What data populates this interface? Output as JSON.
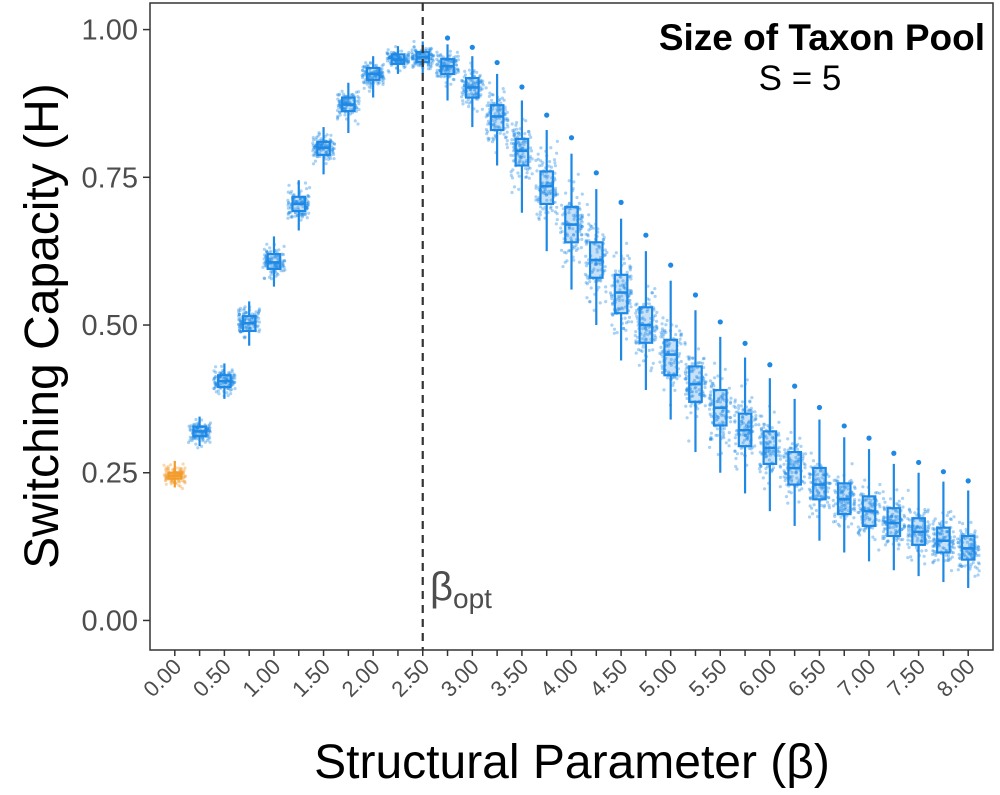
{
  "chart_data": {
    "type": "box",
    "title": "Size of Taxon Pool",
    "subtitle": "S = 5",
    "xlabel": "Structural Parameter (β)",
    "ylabel": "Switching Capacity (H)",
    "ylim": [
      -0.05,
      1.045
    ],
    "xlim": [
      -0.25,
      8.25
    ],
    "y_ticks": [
      0.0,
      0.25,
      0.5,
      0.75,
      1.0
    ],
    "y_tick_labels": [
      "0.00",
      "0.25",
      "0.50",
      "0.75",
      "1.00"
    ],
    "x_ticks": [
      0.0,
      0.5,
      1.0,
      1.5,
      2.0,
      2.5,
      3.0,
      3.5,
      4.0,
      4.5,
      5.0,
      5.5,
      6.0,
      6.5,
      7.0,
      7.5,
      8.0
    ],
    "x_tick_labels": [
      "0.00",
      "0.50",
      "1.00",
      "1.50",
      "2.00",
      "2.50",
      "3.00",
      "3.50",
      "4.00",
      "4.50",
      "5.00",
      "5.50",
      "6.00",
      "6.50",
      "7.00",
      "7.50",
      "8.00"
    ],
    "reference_line": {
      "x": 2.5,
      "style": "dashed",
      "label": "β",
      "label_sub": "opt"
    },
    "colors": {
      "baseline": "#F39C2C",
      "series": "#1E88E5",
      "refline": "#333333"
    },
    "series": [
      {
        "x": 0.0,
        "q1": 0.24,
        "median": 0.245,
        "q3": 0.25,
        "low": 0.225,
        "high": 0.27,
        "spread": 0.012,
        "group": "baseline"
      },
      {
        "x": 0.25,
        "q1": 0.312,
        "median": 0.32,
        "q3": 0.328,
        "low": 0.295,
        "high": 0.345,
        "spread": 0.014,
        "group": "main"
      },
      {
        "x": 0.5,
        "q1": 0.395,
        "median": 0.405,
        "q3": 0.415,
        "low": 0.375,
        "high": 0.435,
        "spread": 0.016,
        "group": "main"
      },
      {
        "x": 0.75,
        "q1": 0.49,
        "median": 0.503,
        "q3": 0.515,
        "low": 0.465,
        "high": 0.54,
        "spread": 0.018,
        "group": "main"
      },
      {
        "x": 1.0,
        "q1": 0.595,
        "median": 0.606,
        "q3": 0.62,
        "low": 0.565,
        "high": 0.65,
        "spread": 0.018,
        "group": "main"
      },
      {
        "x": 1.25,
        "q1": 0.693,
        "median": 0.705,
        "q3": 0.717,
        "low": 0.66,
        "high": 0.745,
        "spread": 0.018,
        "group": "main"
      },
      {
        "x": 1.5,
        "q1": 0.788,
        "median": 0.8,
        "q3": 0.81,
        "low": 0.755,
        "high": 0.835,
        "spread": 0.017,
        "group": "main"
      },
      {
        "x": 1.75,
        "q1": 0.862,
        "median": 0.873,
        "q3": 0.885,
        "low": 0.825,
        "high": 0.91,
        "spread": 0.016,
        "group": "main"
      },
      {
        "x": 2.0,
        "q1": 0.915,
        "median": 0.925,
        "q3": 0.935,
        "low": 0.885,
        "high": 0.955,
        "spread": 0.014,
        "group": "main"
      },
      {
        "x": 2.25,
        "q1": 0.942,
        "median": 0.949,
        "q3": 0.958,
        "low": 0.925,
        "high": 0.972,
        "spread": 0.011,
        "group": "main"
      },
      {
        "x": 2.5,
        "q1": 0.945,
        "median": 0.953,
        "q3": 0.962,
        "low": 0.925,
        "high": 0.98,
        "spread": 0.012,
        "group": "main"
      },
      {
        "x": 2.75,
        "q1": 0.925,
        "median": 0.938,
        "q3": 0.95,
        "low": 0.88,
        "high": 0.975,
        "spread": 0.018,
        "group": "main"
      },
      {
        "x": 3.0,
        "q1": 0.885,
        "median": 0.902,
        "q3": 0.918,
        "low": 0.835,
        "high": 0.955,
        "spread": 0.025,
        "group": "main"
      },
      {
        "x": 3.25,
        "q1": 0.83,
        "median": 0.853,
        "q3": 0.872,
        "low": 0.77,
        "high": 0.925,
        "spread": 0.032,
        "group": "main"
      },
      {
        "x": 3.5,
        "q1": 0.77,
        "median": 0.795,
        "q3": 0.815,
        "low": 0.69,
        "high": 0.88,
        "spread": 0.038,
        "group": "main"
      },
      {
        "x": 3.75,
        "q1": 0.705,
        "median": 0.735,
        "q3": 0.76,
        "low": 0.625,
        "high": 0.83,
        "spread": 0.042,
        "group": "main"
      },
      {
        "x": 4.0,
        "q1": 0.64,
        "median": 0.67,
        "q3": 0.7,
        "low": 0.56,
        "high": 0.79,
        "spread": 0.045,
        "group": "main"
      },
      {
        "x": 4.25,
        "q1": 0.58,
        "median": 0.61,
        "q3": 0.64,
        "low": 0.5,
        "high": 0.73,
        "spread": 0.046,
        "group": "main"
      },
      {
        "x": 4.5,
        "q1": 0.52,
        "median": 0.555,
        "q3": 0.585,
        "low": 0.44,
        "high": 0.68,
        "spread": 0.046,
        "group": "main"
      },
      {
        "x": 4.75,
        "q1": 0.47,
        "median": 0.5,
        "q3": 0.53,
        "low": 0.39,
        "high": 0.625,
        "spread": 0.045,
        "group": "main"
      },
      {
        "x": 5.0,
        "q1": 0.415,
        "median": 0.45,
        "q3": 0.475,
        "low": 0.34,
        "high": 0.575,
        "spread": 0.044,
        "group": "main"
      },
      {
        "x": 5.25,
        "q1": 0.37,
        "median": 0.4,
        "q3": 0.43,
        "low": 0.285,
        "high": 0.525,
        "spread": 0.043,
        "group": "main"
      },
      {
        "x": 5.5,
        "q1": 0.33,
        "median": 0.36,
        "q3": 0.39,
        "low": 0.25,
        "high": 0.48,
        "spread": 0.042,
        "group": "main"
      },
      {
        "x": 5.75,
        "q1": 0.295,
        "median": 0.322,
        "q3": 0.35,
        "low": 0.215,
        "high": 0.445,
        "spread": 0.04,
        "group": "main"
      },
      {
        "x": 6.0,
        "q1": 0.265,
        "median": 0.292,
        "q3": 0.32,
        "low": 0.185,
        "high": 0.41,
        "spread": 0.038,
        "group": "main"
      },
      {
        "x": 6.25,
        "q1": 0.23,
        "median": 0.258,
        "q3": 0.285,
        "low": 0.16,
        "high": 0.375,
        "spread": 0.036,
        "group": "main"
      },
      {
        "x": 6.5,
        "q1": 0.205,
        "median": 0.23,
        "q3": 0.258,
        "low": 0.135,
        "high": 0.34,
        "spread": 0.034,
        "group": "main"
      },
      {
        "x": 6.75,
        "q1": 0.18,
        "median": 0.205,
        "q3": 0.232,
        "low": 0.115,
        "high": 0.31,
        "spread": 0.032,
        "group": "main"
      },
      {
        "x": 7.0,
        "q1": 0.16,
        "median": 0.185,
        "q3": 0.21,
        "low": 0.1,
        "high": 0.29,
        "spread": 0.031,
        "group": "main"
      },
      {
        "x": 7.25,
        "q1": 0.143,
        "median": 0.165,
        "q3": 0.19,
        "low": 0.085,
        "high": 0.265,
        "spread": 0.03,
        "group": "main"
      },
      {
        "x": 7.5,
        "q1": 0.128,
        "median": 0.15,
        "q3": 0.173,
        "low": 0.075,
        "high": 0.25,
        "spread": 0.029,
        "group": "main"
      },
      {
        "x": 7.75,
        "q1": 0.115,
        "median": 0.135,
        "q3": 0.157,
        "low": 0.065,
        "high": 0.235,
        "spread": 0.028,
        "group": "main"
      },
      {
        "x": 8.0,
        "q1": 0.103,
        "median": 0.122,
        "q3": 0.143,
        "low": 0.055,
        "high": 0.22,
        "spread": 0.027,
        "group": "main"
      }
    ]
  }
}
